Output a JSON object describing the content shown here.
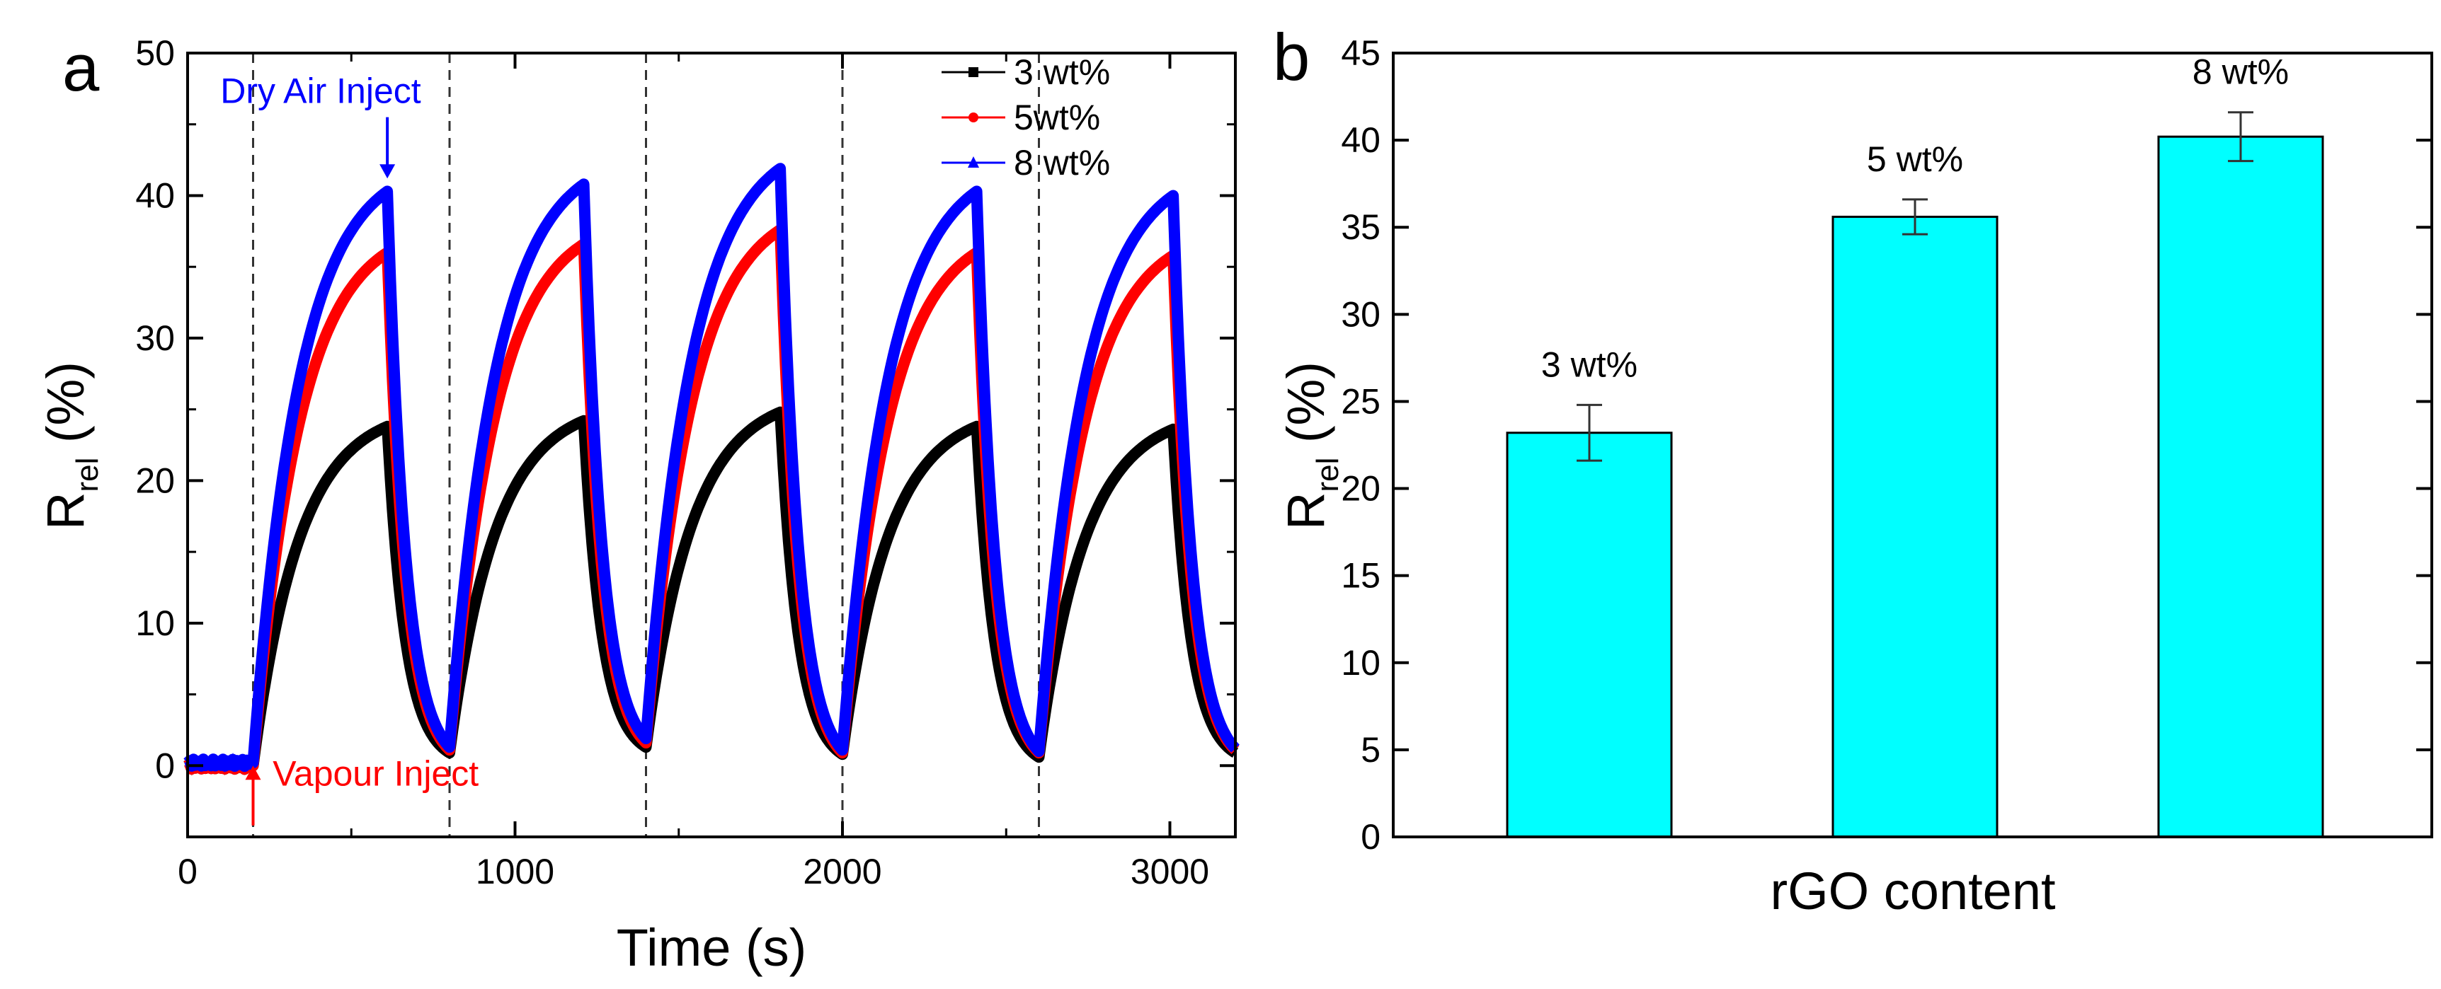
{
  "chart_data": [
    {
      "panel_label": "a",
      "type": "line",
      "xlabel": "Time (s)",
      "ylabel_main": "R",
      "ylabel_sub": "rel",
      "ylabel_unit": " (%)",
      "xlim": [
        0,
        3200
      ],
      "ylim": [
        -5,
        50
      ],
      "xticks": [
        0,
        1000,
        2000,
        3000
      ],
      "yticks": [
        0,
        10,
        20,
        30,
        40,
        50
      ],
      "vlines": [
        200,
        800,
        1400,
        2000,
        2600
      ],
      "cycle": {
        "start": 200,
        "period": 600,
        "rise_duration": 410,
        "recovery_duration": 190
      },
      "series": [
        {
          "name": "3 wt%",
          "color": "#000000",
          "marker": "square",
          "baseline": 0.0,
          "peaks": [
            23.8,
            24.2,
            24.8,
            23.8,
            23.6
          ],
          "troughs": [
            0.9,
            1.3,
            0.8,
            0.6,
            0.9
          ]
        },
        {
          "name": "5wt%",
          "color": "#ff0000",
          "marker": "circle",
          "baseline": 0.0,
          "peaks": [
            36.0,
            36.6,
            37.6,
            36.0,
            35.8
          ],
          "troughs": [
            1.1,
            1.6,
            0.9,
            0.9,
            1.1
          ]
        },
        {
          "name": "8 wt%",
          "color": "#0000ff",
          "marker": "triangle",
          "baseline": 0.2,
          "peaks": [
            40.3,
            40.8,
            41.9,
            40.3,
            40.0
          ],
          "troughs": [
            1.3,
            1.9,
            1.1,
            1.0,
            1.2
          ]
        }
      ],
      "annotations": [
        {
          "text": "Dry Air Inject",
          "color": "#0000ff",
          "arrow_x": 610,
          "arrow_y_from": 45.5,
          "arrow_y_to": 41.2,
          "text_x": 100,
          "text_y": 46.5
        },
        {
          "text": "Vapour Inject",
          "color": "#ff0000",
          "arrow_x": 200,
          "arrow_y_from": -4.2,
          "arrow_y_to": 0.0,
          "text_x": 260,
          "text_y": -1.4
        }
      ],
      "legend_placement": "top-right"
    },
    {
      "panel_label": "b",
      "type": "bar",
      "xlabel": "rGO content",
      "ylabel_main": "R",
      "ylabel_sub": "rel",
      "ylabel_unit": " (%)",
      "ylim": [
        0,
        45
      ],
      "yticks": [
        0,
        5,
        10,
        15,
        20,
        25,
        30,
        35,
        40,
        45
      ],
      "categories": [
        "3 wt%",
        "5 wt%",
        "8 wt%"
      ],
      "values": [
        23.2,
        35.6,
        40.2
      ],
      "errors": [
        1.6,
        1.0,
        1.4
      ],
      "bar_color": "#00ffff"
    }
  ]
}
